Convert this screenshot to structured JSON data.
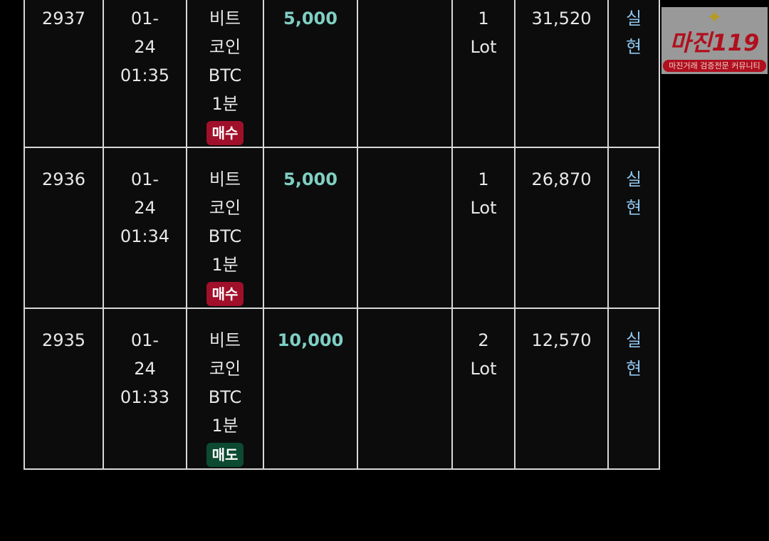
{
  "rows": [
    {
      "id": "",
      "date": [
        "",
        "",
        ""
      ],
      "asset": [
        "",
        "",
        "",
        ""
      ],
      "side": "",
      "amount": "",
      "col5": "",
      "qty": [
        "",
        ""
      ],
      "price": "",
      "status": [
        "",
        ""
      ]
    },
    {
      "id": "2937",
      "date": [
        "01-",
        "24",
        "01:35"
      ],
      "asset": [
        "비트",
        "코인",
        "BTC",
        "1분"
      ],
      "side": "매수",
      "side_type": "buy",
      "amount": "5,000",
      "qty": [
        "1",
        "Lot"
      ],
      "price": "31,520",
      "status": [
        "실",
        "현"
      ]
    },
    {
      "id": "2936",
      "date": [
        "01-",
        "24",
        "01:34"
      ],
      "asset": [
        "비트",
        "코인",
        "BTC",
        "1분"
      ],
      "side": "매수",
      "side_type": "buy",
      "amount": "5,000",
      "qty": [
        "1",
        "Lot"
      ],
      "price": "26,870",
      "status": [
        "실",
        "현"
      ]
    },
    {
      "id": "2935",
      "date": [
        "01-",
        "24",
        "01:33"
      ],
      "asset": [
        "비트",
        "코인",
        "BTC",
        "1분"
      ],
      "side": "매도",
      "side_type": "sell",
      "amount": "10,000",
      "qty": [
        "2",
        "Lot"
      ],
      "price": "12,570",
      "status": [
        "실",
        "현"
      ]
    }
  ],
  "watermark": {
    "title": "마진119",
    "subtitle": "마진거래 검증전문 커뮤니티"
  },
  "colors": {
    "buy": "#a0102a",
    "sell": "#0c4a32",
    "amount": "#7fcfc4",
    "status": "#8fc6ee"
  }
}
